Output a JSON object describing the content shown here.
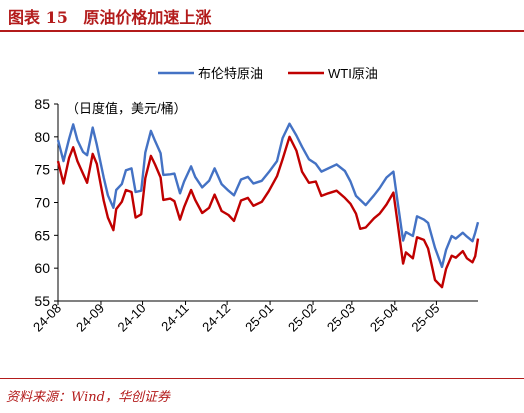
{
  "header": {
    "figure_label": "图表 15",
    "title": "原油价格加速上涨"
  },
  "source": "资料来源：Wind，华创证券",
  "chart_data": {
    "type": "line",
    "title": "",
    "unit_label": "（日度值，美元/桶）",
    "xlabel": "",
    "ylabel": "",
    "ylim": [
      55,
      85
    ],
    "yticks": [
      55,
      60,
      65,
      70,
      75,
      80,
      85
    ],
    "x_range": [
      "2024-08-01",
      "2025-05-31"
    ],
    "x_ticks": [
      {
        "label": "24-08",
        "date": "2024-08-01"
      },
      {
        "label": "24-09",
        "date": "2024-09-01"
      },
      {
        "label": "24-10",
        "date": "2024-10-01"
      },
      {
        "label": "24-11",
        "date": "2024-11-01"
      },
      {
        "label": "24-12",
        "date": "2024-12-01"
      },
      {
        "label": "25-01",
        "date": "2025-01-01"
      },
      {
        "label": "25-02",
        "date": "2025-02-01"
      },
      {
        "label": "25-03",
        "date": "2025-03-01"
      },
      {
        "label": "25-04",
        "date": "2025-04-01"
      },
      {
        "label": "25-05",
        "date": "2025-05-01"
      }
    ],
    "grid": false,
    "legend_position": "top",
    "series": [
      {
        "name": "布伦特原油",
        "color": "#4472c4",
        "points": [
          [
            "2024-08-01",
            79.5
          ],
          [
            "2024-08-05",
            76.3
          ],
          [
            "2024-08-09",
            79.7
          ],
          [
            "2024-08-12",
            81.9
          ],
          [
            "2024-08-15",
            79.5
          ],
          [
            "2024-08-19",
            77.7
          ],
          [
            "2024-08-22",
            77.2
          ],
          [
            "2024-08-26",
            81.4
          ],
          [
            "2024-08-29",
            78.8
          ],
          [
            "2024-09-03",
            73.8
          ],
          [
            "2024-09-06",
            71.1
          ],
          [
            "2024-09-10",
            69.2
          ],
          [
            "2024-09-12",
            71.9
          ],
          [
            "2024-09-16",
            72.8
          ],
          [
            "2024-09-19",
            74.9
          ],
          [
            "2024-09-23",
            75.2
          ],
          [
            "2024-09-26",
            71.6
          ],
          [
            "2024-09-30",
            71.8
          ],
          [
            "2024-10-03",
            77.6
          ],
          [
            "2024-10-07",
            80.9
          ],
          [
            "2024-10-10",
            79.4
          ],
          [
            "2024-10-14",
            77.5
          ],
          [
            "2024-10-16",
            74.2
          ],
          [
            "2024-10-21",
            74.3
          ],
          [
            "2024-10-24",
            74.4
          ],
          [
            "2024-10-28",
            71.4
          ],
          [
            "2024-10-31",
            73.2
          ],
          [
            "2024-11-05",
            75.5
          ],
          [
            "2024-11-08",
            73.9
          ],
          [
            "2024-11-13",
            72.3
          ],
          [
            "2024-11-18",
            73.3
          ],
          [
            "2024-11-22",
            75.2
          ],
          [
            "2024-11-27",
            72.8
          ],
          [
            "2024-12-02",
            71.8
          ],
          [
            "2024-12-06",
            71.1
          ],
          [
            "2024-12-11",
            73.5
          ],
          [
            "2024-12-16",
            73.9
          ],
          [
            "2024-12-20",
            72.9
          ],
          [
            "2024-12-26",
            73.3
          ],
          [
            "2024-12-31",
            74.6
          ],
          [
            "2025-01-06",
            76.3
          ],
          [
            "2025-01-10",
            79.8
          ],
          [
            "2025-01-15",
            82.0
          ],
          [
            "2025-01-20",
            80.2
          ],
          [
            "2025-01-24",
            78.5
          ],
          [
            "2025-01-29",
            76.6
          ],
          [
            "2025-02-03",
            75.9
          ],
          [
            "2025-02-07",
            74.7
          ],
          [
            "2025-02-12",
            75.2
          ],
          [
            "2025-02-18",
            75.8
          ],
          [
            "2025-02-24",
            74.8
          ],
          [
            "2025-02-28",
            73.2
          ],
          [
            "2025-03-04",
            71.0
          ],
          [
            "2025-03-07",
            70.4
          ],
          [
            "2025-03-11",
            69.6
          ],
          [
            "2025-03-17",
            71.1
          ],
          [
            "2025-03-21",
            72.2
          ],
          [
            "2025-03-26",
            73.8
          ],
          [
            "2025-03-31",
            74.7
          ],
          [
            "2025-04-03",
            70.1
          ],
          [
            "2025-04-07",
            64.2
          ],
          [
            "2025-04-09",
            65.5
          ],
          [
            "2025-04-14",
            64.9
          ],
          [
            "2025-04-17",
            67.9
          ],
          [
            "2025-04-22",
            67.4
          ],
          [
            "2025-04-25",
            66.9
          ],
          [
            "2025-04-30",
            63.1
          ],
          [
            "2025-05-05",
            60.2
          ],
          [
            "2025-05-08",
            62.8
          ],
          [
            "2025-05-12",
            64.9
          ],
          [
            "2025-05-15",
            64.5
          ],
          [
            "2025-05-20",
            65.4
          ],
          [
            "2025-05-23",
            64.8
          ],
          [
            "2025-05-27",
            64.1
          ],
          [
            "2025-05-29",
            65.4
          ],
          [
            "2025-05-31",
            67.0
          ]
        ]
      },
      {
        "name": "WTI原油",
        "color": "#c00000",
        "points": [
          [
            "2024-08-01",
            76.3
          ],
          [
            "2024-08-05",
            72.9
          ],
          [
            "2024-08-09",
            76.8
          ],
          [
            "2024-08-12",
            78.4
          ],
          [
            "2024-08-15",
            76.3
          ],
          [
            "2024-08-19",
            74.4
          ],
          [
            "2024-08-22",
            73.0
          ],
          [
            "2024-08-26",
            77.4
          ],
          [
            "2024-08-29",
            75.9
          ],
          [
            "2024-09-03",
            70.3
          ],
          [
            "2024-09-06",
            67.7
          ],
          [
            "2024-09-10",
            65.8
          ],
          [
            "2024-09-12",
            69.0
          ],
          [
            "2024-09-16",
            70.1
          ],
          [
            "2024-09-19",
            71.9
          ],
          [
            "2024-09-23",
            71.6
          ],
          [
            "2024-09-26",
            67.7
          ],
          [
            "2024-09-30",
            68.2
          ],
          [
            "2024-10-03",
            73.7
          ],
          [
            "2024-10-07",
            77.1
          ],
          [
            "2024-10-10",
            75.8
          ],
          [
            "2024-10-14",
            73.8
          ],
          [
            "2024-10-16",
            70.4
          ],
          [
            "2024-10-21",
            70.6
          ],
          [
            "2024-10-24",
            70.2
          ],
          [
            "2024-10-28",
            67.4
          ],
          [
            "2024-10-31",
            69.3
          ],
          [
            "2024-11-05",
            71.9
          ],
          [
            "2024-11-08",
            70.4
          ],
          [
            "2024-11-13",
            68.4
          ],
          [
            "2024-11-18",
            69.2
          ],
          [
            "2024-11-22",
            71.2
          ],
          [
            "2024-11-27",
            68.7
          ],
          [
            "2024-12-02",
            68.1
          ],
          [
            "2024-12-06",
            67.2
          ],
          [
            "2024-12-11",
            70.3
          ],
          [
            "2024-12-16",
            70.7
          ],
          [
            "2024-12-20",
            69.5
          ],
          [
            "2024-12-26",
            70.1
          ],
          [
            "2024-12-31",
            71.7
          ],
          [
            "2025-01-06",
            74.0
          ],
          [
            "2025-01-10",
            76.6
          ],
          [
            "2025-01-15",
            80.0
          ],
          [
            "2025-01-20",
            77.9
          ],
          [
            "2025-01-24",
            74.7
          ],
          [
            "2025-01-29",
            73.0
          ],
          [
            "2025-02-03",
            73.2
          ],
          [
            "2025-02-07",
            71.0
          ],
          [
            "2025-02-12",
            71.4
          ],
          [
            "2025-02-18",
            71.8
          ],
          [
            "2025-02-24",
            70.7
          ],
          [
            "2025-02-28",
            69.8
          ],
          [
            "2025-03-04",
            68.3
          ],
          [
            "2025-03-07",
            66.0
          ],
          [
            "2025-03-11",
            66.2
          ],
          [
            "2025-03-17",
            67.6
          ],
          [
            "2025-03-21",
            68.3
          ],
          [
            "2025-03-26",
            69.7
          ],
          [
            "2025-03-31",
            71.5
          ],
          [
            "2025-04-03",
            66.9
          ],
          [
            "2025-04-07",
            60.7
          ],
          [
            "2025-04-09",
            62.4
          ],
          [
            "2025-04-14",
            61.5
          ],
          [
            "2025-04-17",
            64.7
          ],
          [
            "2025-04-22",
            64.3
          ],
          [
            "2025-04-25",
            63.0
          ],
          [
            "2025-04-30",
            58.2
          ],
          [
            "2025-05-05",
            57.1
          ],
          [
            "2025-05-08",
            59.9
          ],
          [
            "2025-05-12",
            61.9
          ],
          [
            "2025-05-15",
            61.6
          ],
          [
            "2025-05-20",
            62.6
          ],
          [
            "2025-05-23",
            61.5
          ],
          [
            "2025-05-27",
            60.9
          ],
          [
            "2025-05-29",
            61.8
          ],
          [
            "2025-05-31",
            64.5
          ]
        ]
      }
    ]
  }
}
